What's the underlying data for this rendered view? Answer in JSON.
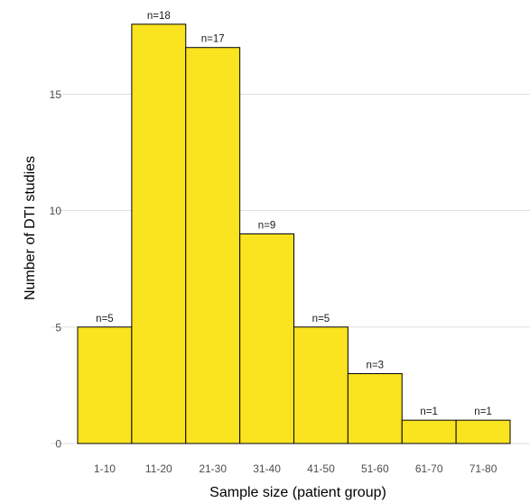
{
  "chart_data": {
    "type": "bar",
    "categories": [
      "1-10",
      "11-20",
      "21-30",
      "31-40",
      "41-50",
      "51-60",
      "61-70",
      "71-80"
    ],
    "values": [
      5,
      18,
      17,
      9,
      5,
      3,
      1,
      1
    ],
    "data_labels": [
      "n=5",
      "n=18",
      "n=17",
      "n=9",
      "n=5",
      "n=3",
      "n=1",
      "n=1"
    ],
    "xlabel": "Sample size (patient group)",
    "ylabel": "Number of DTI studies",
    "ylim": [
      0,
      19
    ],
    "yticks": [
      0,
      5,
      10,
      15
    ],
    "grid": true,
    "legend": "none",
    "bar_color": "#fae31f",
    "bar_outline_color": "#000000",
    "grid_color": "#dcdcdc"
  }
}
